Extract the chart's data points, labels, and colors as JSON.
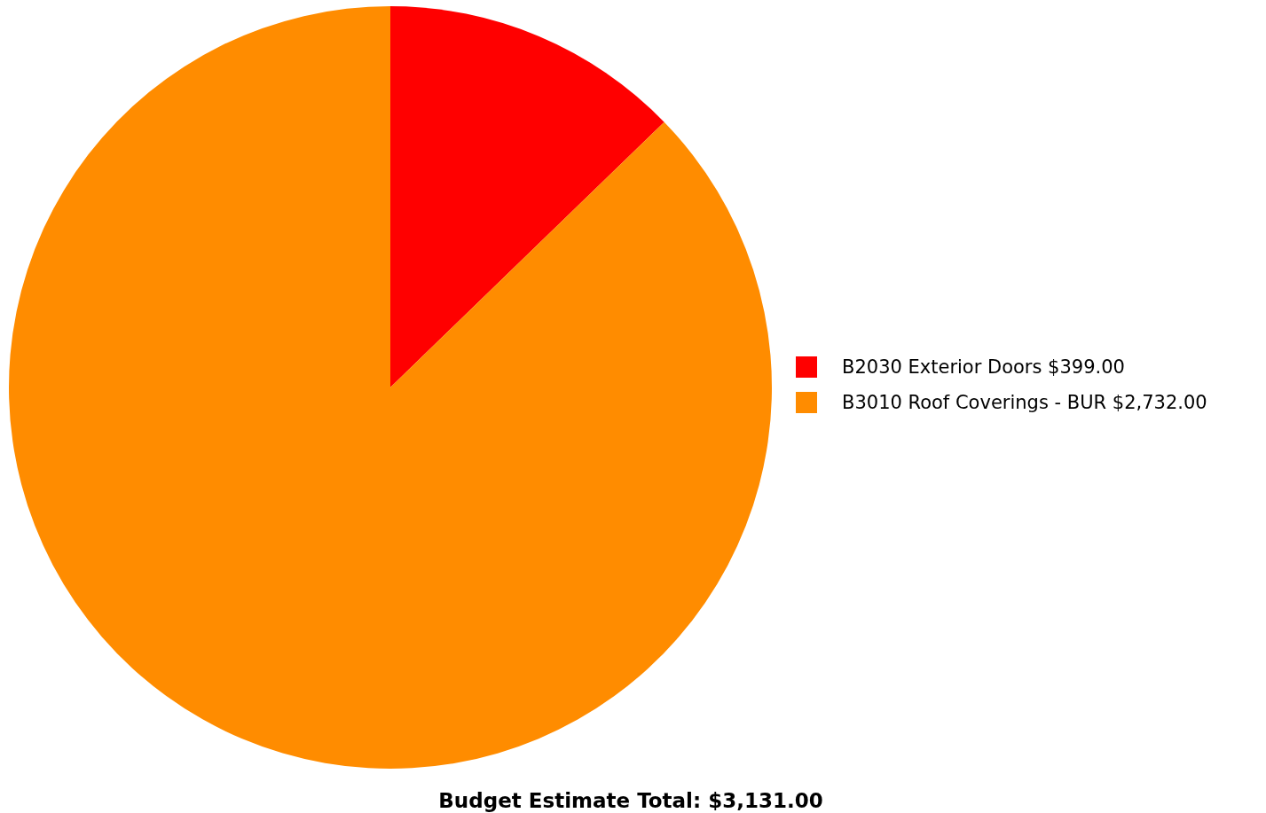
{
  "chart_data": {
    "type": "pie",
    "title": "Budget Estimate Total: $3,131.00",
    "categories": [
      "B2030 Exterior Doors",
      "B3010 Roof Coverings - BUR"
    ],
    "values": [
      399,
      2732
    ],
    "value_labels": [
      "$399.00",
      "$2,732.00"
    ],
    "colors": [
      "#ff0000",
      "#ff8c00"
    ],
    "legend": "right"
  }
}
